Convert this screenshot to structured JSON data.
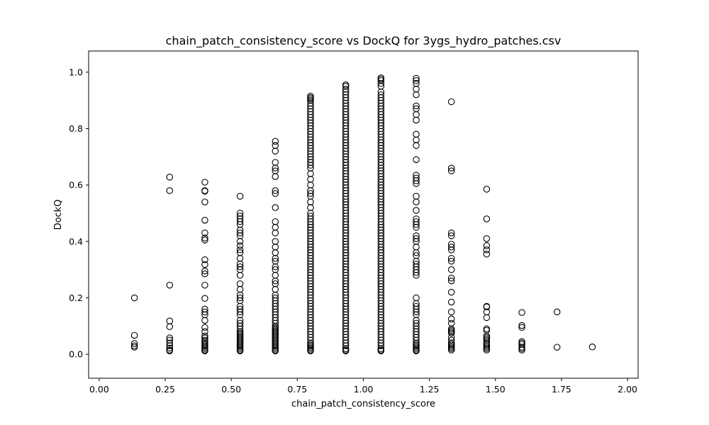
{
  "chart_data": {
    "type": "scatter",
    "title": "chain_patch_consistency_score vs DockQ for 3ygs_hydro_patches.csv",
    "xlabel": "chain_patch_consistency_score",
    "ylabel": "DockQ",
    "xlim": [
      -0.04,
      2.04
    ],
    "ylim": [
      -0.085,
      1.075
    ],
    "xticks": [
      "0.00",
      "0.25",
      "0.50",
      "0.75",
      "1.00",
      "1.25",
      "1.50",
      "1.75",
      "2.00"
    ],
    "yticks": [
      "0.0",
      "0.2",
      "0.4",
      "0.6",
      "0.8",
      "1.0"
    ],
    "grid": false,
    "marker": "open-circle",
    "columns": [
      {
        "x": 0.1333,
        "y": [
          0.2,
          0.067,
          0.038,
          0.03,
          0.025
        ]
      },
      {
        "x": 0.2667,
        "y": [
          0.628,
          0.58,
          0.245,
          0.118,
          0.098,
          0.058,
          0.05,
          0.04,
          0.03,
          0.022,
          0.015,
          0.012
        ]
      },
      {
        "x": 0.4,
        "y": [
          0.61,
          0.58,
          0.578,
          0.54,
          0.475,
          0.43,
          0.412,
          0.405,
          0.335,
          0.318,
          0.295,
          0.285,
          0.245,
          0.198,
          0.16,
          0.15,
          0.14,
          0.12,
          0.095,
          0.08,
          0.065,
          0.058,
          0.05,
          0.045,
          0.04,
          0.035,
          0.03,
          0.025,
          0.02,
          0.015,
          0.012
        ]
      },
      {
        "x": 0.5333,
        "y": [
          0.56,
          0.5,
          0.49,
          0.48,
          0.47,
          0.46,
          0.44,
          0.43,
          0.42,
          0.4,
          0.385,
          0.37,
          0.36,
          0.34,
          0.32,
          0.31,
          0.3,
          0.28,
          0.25,
          0.23,
          0.21,
          0.2,
          0.19,
          0.17,
          0.16,
          0.15,
          0.14,
          0.12,
          0.11,
          0.1,
          0.09,
          0.08,
          0.075,
          0.07,
          0.065,
          0.06,
          0.055,
          0.05,
          0.045,
          0.04,
          0.035,
          0.03,
          0.025,
          0.02,
          0.015,
          0.012
        ]
      },
      {
        "x": 0.6667,
        "y": [
          0.755,
          0.74,
          0.72,
          0.68,
          0.66,
          0.65,
          0.63,
          0.58,
          0.57,
          0.52,
          0.47,
          0.45,
          0.43,
          0.4,
          0.38,
          0.36,
          0.34,
          0.33,
          0.31,
          0.3,
          0.28,
          0.26,
          0.25,
          0.23,
          0.21,
          0.2,
          0.19,
          0.18,
          0.17,
          0.16,
          0.15,
          0.14,
          0.13,
          0.12,
          0.11,
          0.1,
          0.095,
          0.09,
          0.085,
          0.08,
          0.075,
          0.07,
          0.065,
          0.06,
          0.055,
          0.05,
          0.045,
          0.04,
          0.035,
          0.03,
          0.025,
          0.02,
          0.015,
          0.012
        ]
      },
      {
        "x": 0.8,
        "y": [
          0.915,
          0.91,
          0.905,
          0.9,
          0.89,
          0.88,
          0.87,
          0.86,
          0.85,
          0.84,
          0.83,
          0.82,
          0.81,
          0.8,
          0.79,
          0.78,
          0.77,
          0.76,
          0.75,
          0.74,
          0.73,
          0.72,
          0.71,
          0.7,
          0.69,
          0.68,
          0.67,
          0.66,
          0.64,
          0.62,
          0.6,
          0.58,
          0.57,
          0.56,
          0.54,
          0.52,
          0.5,
          0.49,
          0.48,
          0.47,
          0.46,
          0.45,
          0.44,
          0.43,
          0.42,
          0.41,
          0.4,
          0.39,
          0.38,
          0.37,
          0.36,
          0.35,
          0.34,
          0.33,
          0.32,
          0.31,
          0.3,
          0.29,
          0.28,
          0.27,
          0.26,
          0.25,
          0.24,
          0.23,
          0.22,
          0.21,
          0.2,
          0.19,
          0.18,
          0.17,
          0.16,
          0.15,
          0.14,
          0.13,
          0.12,
          0.11,
          0.1,
          0.09,
          0.08,
          0.07,
          0.06,
          0.05,
          0.04,
          0.035,
          0.03,
          0.025,
          0.02,
          0.015,
          0.012
        ]
      },
      {
        "x": 0.9333,
        "y": [
          0.955,
          0.95,
          0.94,
          0.93,
          0.92,
          0.91,
          0.9,
          0.89,
          0.88,
          0.87,
          0.86,
          0.85,
          0.84,
          0.83,
          0.82,
          0.81,
          0.8,
          0.79,
          0.78,
          0.77,
          0.76,
          0.75,
          0.74,
          0.73,
          0.72,
          0.71,
          0.7,
          0.69,
          0.68,
          0.67,
          0.66,
          0.65,
          0.64,
          0.63,
          0.62,
          0.61,
          0.6,
          0.59,
          0.58,
          0.57,
          0.56,
          0.55,
          0.54,
          0.53,
          0.52,
          0.51,
          0.5,
          0.49,
          0.48,
          0.47,
          0.46,
          0.45,
          0.44,
          0.43,
          0.42,
          0.41,
          0.4,
          0.39,
          0.38,
          0.37,
          0.36,
          0.35,
          0.34,
          0.33,
          0.32,
          0.31,
          0.3,
          0.29,
          0.28,
          0.27,
          0.26,
          0.25,
          0.24,
          0.23,
          0.22,
          0.21,
          0.2,
          0.19,
          0.18,
          0.17,
          0.16,
          0.15,
          0.14,
          0.13,
          0.12,
          0.11,
          0.1,
          0.09,
          0.08,
          0.07,
          0.06,
          0.05,
          0.04,
          0.03,
          0.02,
          0.015,
          0.012
        ]
      },
      {
        "x": 1.0667,
        "y": [
          0.98,
          0.975,
          0.97,
          0.96,
          0.95,
          0.93,
          0.92,
          0.91,
          0.9,
          0.89,
          0.88,
          0.87,
          0.86,
          0.85,
          0.84,
          0.83,
          0.82,
          0.81,
          0.8,
          0.79,
          0.78,
          0.77,
          0.76,
          0.75,
          0.74,
          0.73,
          0.72,
          0.71,
          0.7,
          0.69,
          0.68,
          0.67,
          0.66,
          0.65,
          0.64,
          0.63,
          0.62,
          0.61,
          0.6,
          0.59,
          0.58,
          0.57,
          0.56,
          0.55,
          0.54,
          0.53,
          0.52,
          0.51,
          0.5,
          0.49,
          0.48,
          0.47,
          0.46,
          0.45,
          0.44,
          0.43,
          0.42,
          0.41,
          0.4,
          0.39,
          0.38,
          0.37,
          0.36,
          0.35,
          0.34,
          0.33,
          0.32,
          0.31,
          0.3,
          0.29,
          0.28,
          0.27,
          0.26,
          0.25,
          0.24,
          0.23,
          0.22,
          0.21,
          0.2,
          0.19,
          0.18,
          0.17,
          0.16,
          0.15,
          0.14,
          0.13,
          0.12,
          0.11,
          0.1,
          0.09,
          0.08,
          0.07,
          0.06,
          0.05,
          0.04,
          0.03,
          0.02,
          0.015,
          0.012
        ]
      },
      {
        "x": 1.2,
        "y": [
          0.978,
          0.97,
          0.96,
          0.94,
          0.92,
          0.88,
          0.87,
          0.85,
          0.83,
          0.78,
          0.76,
          0.74,
          0.69,
          0.635,
          0.625,
          0.615,
          0.605,
          0.56,
          0.54,
          0.51,
          0.48,
          0.47,
          0.46,
          0.45,
          0.42,
          0.41,
          0.4,
          0.38,
          0.36,
          0.35,
          0.33,
          0.32,
          0.31,
          0.3,
          0.29,
          0.28,
          0.2,
          0.18,
          0.17,
          0.16,
          0.15,
          0.14,
          0.12,
          0.11,
          0.1,
          0.09,
          0.08,
          0.07,
          0.06,
          0.05,
          0.04,
          0.035,
          0.03,
          0.025,
          0.02,
          0.015,
          0.012
        ]
      },
      {
        "x": 1.3333,
        "y": [
          0.895,
          0.66,
          0.65,
          0.43,
          0.42,
          0.39,
          0.38,
          0.37,
          0.34,
          0.33,
          0.3,
          0.27,
          0.26,
          0.22,
          0.185,
          0.15,
          0.125,
          0.11,
          0.09,
          0.085,
          0.08,
          0.075,
          0.06,
          0.05,
          0.04,
          0.035,
          0.03,
          0.025,
          0.02,
          0.015
        ]
      },
      {
        "x": 1.4667,
        "y": [
          0.585,
          0.48,
          0.41,
          0.385,
          0.37,
          0.355,
          0.17,
          0.168,
          0.15,
          0.13,
          0.09,
          0.085,
          0.065,
          0.06,
          0.055,
          0.05,
          0.04,
          0.035,
          0.03,
          0.025,
          0.02,
          0.015
        ]
      },
      {
        "x": 1.6,
        "y": [
          0.148,
          0.102,
          0.095,
          0.045,
          0.04,
          0.035,
          0.025,
          0.02,
          0.015
        ]
      },
      {
        "x": 1.7333,
        "y": [
          0.15,
          0.025
        ]
      },
      {
        "x": 1.8667,
        "y": [
          0.026
        ]
      }
    ]
  }
}
